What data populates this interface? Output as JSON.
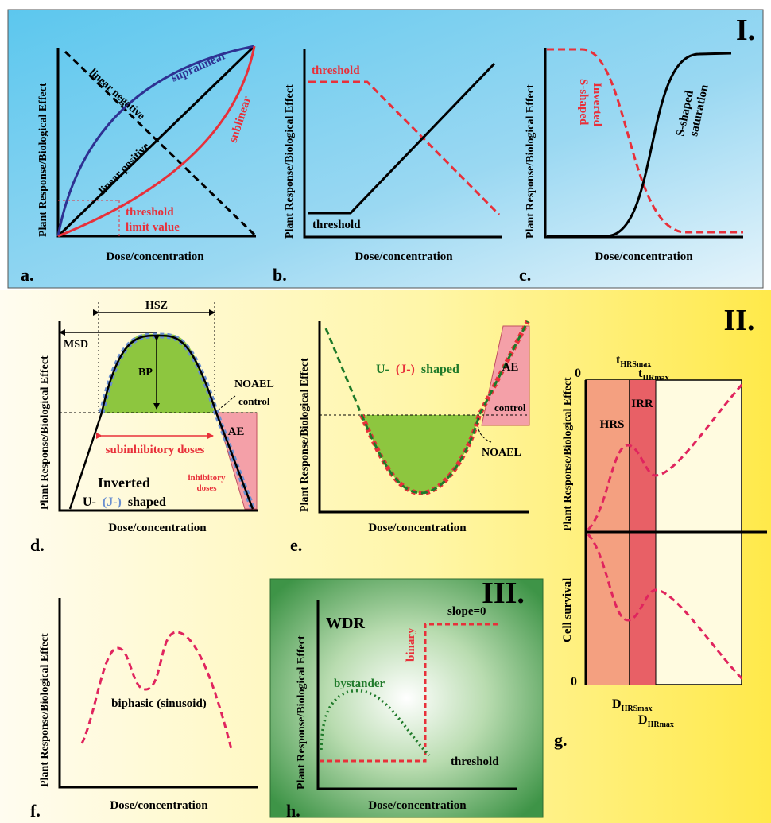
{
  "section_I": {
    "numeral": "I.",
    "panel_a": {
      "letter": "a.",
      "ylabel": "Plant Response/Biological Effect",
      "xlabel": "Dose/concentration",
      "linear_negative": "linear negative",
      "linear_positive": "linear positive",
      "supralinear": "supralinear",
      "sublinear": "sublinear",
      "threshold_line1": "threshold",
      "threshold_line2": "limit value"
    },
    "panel_b": {
      "letter": "b.",
      "ylabel": "Plant Response/Biological Effect",
      "xlabel": "Dose/concentration",
      "threshold_red": "threshold",
      "threshold_black": "threshold"
    },
    "panel_c": {
      "letter": "c.",
      "ylabel": "Plant Response/Biological Effect",
      "xlabel": "Dose/concentration",
      "inverted_line1": "Inverted",
      "inverted_line2": "S-shaped",
      "sshaped_line1": "S-shaped",
      "sshaped_line2": "saturation"
    }
  },
  "section_II": {
    "numeral": "II.",
    "panel_d": {
      "letter": "d.",
      "ylabel": "Plant Response/Biological Effect",
      "xlabel": "Dose/concentration",
      "hsz": "HSZ",
      "msd": "MSD",
      "bp": "BP",
      "noael": "NOAEL",
      "control": "control",
      "ae": "AE",
      "subinhibitory": "subinhibitory doses",
      "inhibitory_line1": "inhibitory",
      "inhibitory_line2": "doses",
      "inverted": "Inverted",
      "u_prefix": "U-",
      "j_part": "(J-)",
      "shaped": "shaped"
    },
    "panel_e": {
      "letter": "e.",
      "ylabel": "Plant Response/Biological Effect",
      "xlabel": "Dose/concentration",
      "u_prefix": "U-",
      "j_part": "(J-)",
      "shaped": "shaped",
      "ae": "AE",
      "control": "control",
      "noael": "NOAEL"
    },
    "panel_f": {
      "letter": "f.",
      "ylabel": "Plant Response/Biological Effect",
      "xlabel": "Dose/concentration",
      "biphasic": "biphasic (sinusoid)"
    },
    "panel_g": {
      "letter": "g.",
      "ylabel_top": "Plant Response/Biological Effect",
      "ylabel_bottom": "Cell survival",
      "zero_top": "0",
      "zero_bottom": "0",
      "t_hrs_main": "t",
      "t_hrs_sub": "HRSmax",
      "t_iir_main": "t",
      "t_iir_sub": "IIRmax",
      "hrs": "HRS",
      "irr": "IRR",
      "d_hrs_main": "D",
      "d_hrs_sub": "HRSmax",
      "d_iir_main": "D",
      "d_iir_sub": "IIRmax"
    }
  },
  "section_III": {
    "numeral": "III.",
    "panel_h": {
      "letter": "h.",
      "ylabel": "Plant Response/Biological Effect",
      "xlabel": "Dose/concentration",
      "wdr": "WDR",
      "slope": "slope=0",
      "binary": "binary",
      "bystander": "bystander",
      "threshold": "threshold"
    }
  },
  "colors": {
    "red": "#e8303a",
    "blue": "#2e3192",
    "green": "#1f7a2a",
    "pink_curve": "#e0245e",
    "green_fill": "#8dc63f",
    "ae_fill": "#f4a0a8",
    "dot_blue": "#6a8fd0"
  }
}
